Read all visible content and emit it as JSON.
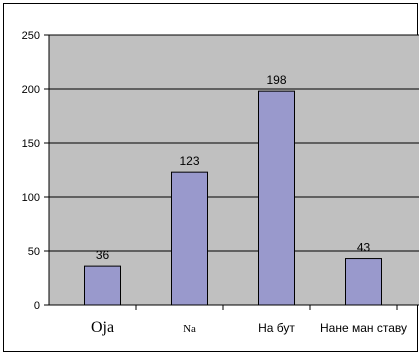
{
  "chart_data": {
    "type": "bar",
    "categories": [
      "Oja",
      "Na",
      "На бут",
      "Нане ман ставу"
    ],
    "values": [
      36,
      123,
      198,
      43
    ],
    "ylim": [
      0,
      250
    ],
    "yticks": [
      0,
      50,
      100,
      150,
      200,
      250
    ],
    "grid": true,
    "legend": "none",
    "colors": {
      "bar_fill": "#9999cc",
      "bar_stroke": "#000000",
      "plot_background": "#c0c0c0",
      "gridline": "#000000"
    }
  }
}
